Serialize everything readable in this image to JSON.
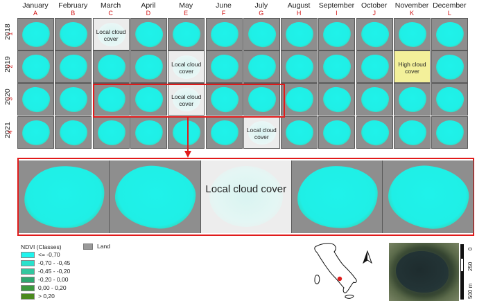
{
  "months": [
    {
      "name": "January",
      "letter": "A"
    },
    {
      "name": "February",
      "letter": "B"
    },
    {
      "name": "March",
      "letter": "C"
    },
    {
      "name": "April",
      "letter": "D"
    },
    {
      "name": "May",
      "letter": "E"
    },
    {
      "name": "June",
      "letter": "F"
    },
    {
      "name": "July",
      "letter": "G"
    },
    {
      "name": "August",
      "letter": "H"
    },
    {
      "name": "September",
      "letter": "I"
    },
    {
      "name": "October",
      "letter": "J"
    },
    {
      "name": "November",
      "letter": "K"
    },
    {
      "name": "December",
      "letter": "L"
    }
  ],
  "years": [
    {
      "year": "2018",
      "index": "1"
    },
    {
      "year": "2019",
      "index": "2"
    },
    {
      "year": "2020",
      "index": "3"
    },
    {
      "year": "2021",
      "index": "4"
    }
  ],
  "cloud_cells": {
    "r1c3": "Local cloud cover",
    "r2c5": "Local cloud cover",
    "r2c11": "High cloud cover",
    "r3c5": "Local cloud cover",
    "r4c7": "Local cloud cover"
  },
  "zoom_cloud": "Local cloud cover",
  "legend": {
    "title": "NDVI (Classes)",
    "classes": [
      {
        "label": "<= -0,70",
        "color": "#1ff4ee"
      },
      {
        "label": "-0,70 - -0,45",
        "color": "#28e2cc"
      },
      {
        "label": "-0,45 - -0,20",
        "color": "#32c79f"
      },
      {
        "label": "-0,20 - 0,00",
        "color": "#2ea870"
      },
      {
        "label": "0,00 - 0,20",
        "color": "#3b9a3e"
      },
      {
        "label": "> 0,20",
        "color": "#4b8a1e"
      }
    ],
    "land_label": "Land",
    "land_color": "#9a9a9a"
  },
  "scale": {
    "labels": [
      "0",
      "250",
      "500 m"
    ]
  },
  "north_icon": "north-arrow-icon",
  "colors": {
    "highlight": "#e01b1b",
    "water": "#1ff2ea",
    "vegetation": "#4a8a25"
  }
}
